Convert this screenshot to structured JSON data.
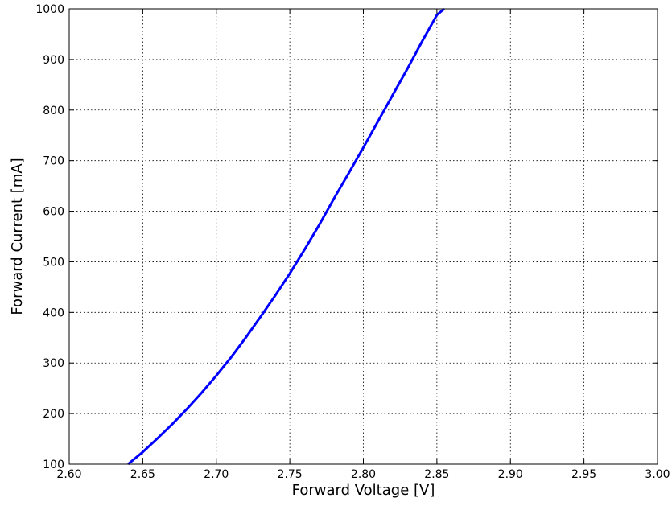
{
  "chart_data": {
    "type": "line",
    "title": "",
    "xlabel": "Forward Voltage [V]",
    "ylabel": "Forward Current [mA]",
    "xlim": [
      2.6,
      3.0
    ],
    "ylim": [
      100,
      1000
    ],
    "xticks": [
      2.6,
      2.65,
      2.7,
      2.75,
      2.8,
      2.85,
      2.9,
      2.95,
      3.0
    ],
    "xtick_labels": [
      "2.60",
      "2.65",
      "2.70",
      "2.75",
      "2.80",
      "2.85",
      "2.90",
      "2.95",
      "3.00"
    ],
    "yticks": [
      100,
      200,
      300,
      400,
      500,
      600,
      700,
      800,
      900,
      1000
    ],
    "ytick_labels": [
      "100",
      "200",
      "300",
      "400",
      "500",
      "600",
      "700",
      "800",
      "900",
      "1000"
    ],
    "grid": true,
    "series": [
      {
        "color": "#0000ff",
        "x": [
          2.64,
          2.65,
          2.66,
          2.67,
          2.68,
          2.69,
          2.7,
          2.71,
          2.72,
          2.73,
          2.74,
          2.75,
          2.76,
          2.77,
          2.78,
          2.79,
          2.8,
          2.81,
          2.82,
          2.83,
          2.84,
          2.85,
          2.855
        ],
        "y": [
          100,
          124,
          151,
          179,
          209,
          241,
          275,
          311,
          350,
          391,
          433,
          477,
          524,
          573,
          625,
          675,
          726,
          778,
          830,
          882,
          936,
          988,
          1000
        ]
      }
    ]
  }
}
